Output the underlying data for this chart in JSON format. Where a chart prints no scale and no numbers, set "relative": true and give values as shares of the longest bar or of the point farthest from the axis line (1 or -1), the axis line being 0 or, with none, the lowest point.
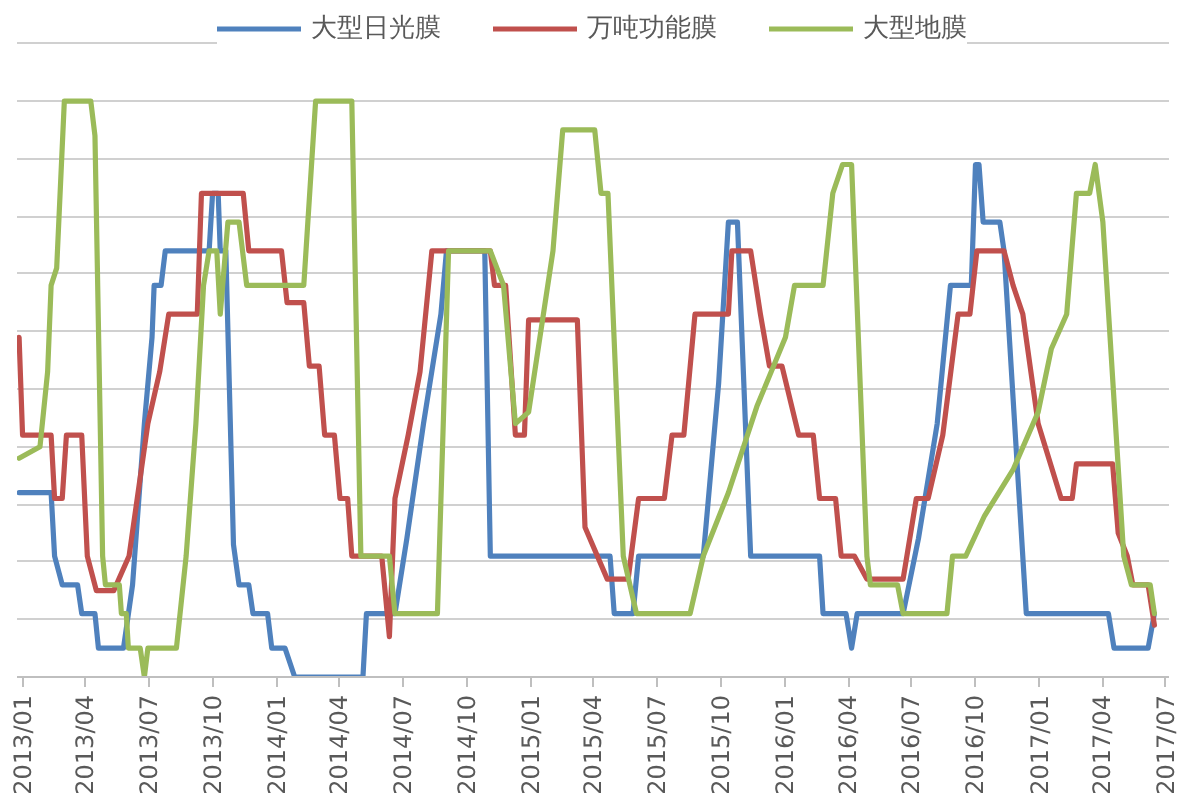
{
  "chart_data": {
    "type": "line",
    "relative": true,
    "legend": "top",
    "grid": "y",
    "xlim": [
      "2012-12-24",
      "2017-07-06"
    ],
    "xticks": [
      {
        "value": "2013-01",
        "label": "2013/01"
      },
      {
        "value": "2013-04",
        "label": "2013/04"
      },
      {
        "value": "2013-07",
        "label": "2013/07"
      },
      {
        "value": "2013-10",
        "label": "2013/10"
      },
      {
        "value": "2014-01",
        "label": "2014/01"
      },
      {
        "value": "2014-04",
        "label": "2014/04"
      },
      {
        "value": "2014-07",
        "label": "2014/07"
      },
      {
        "value": "2014-10",
        "label": "2014/10"
      },
      {
        "value": "2015-01",
        "label": "2015/01"
      },
      {
        "value": "2015-04",
        "label": "2015/04"
      },
      {
        "value": "2015-07",
        "label": "2015/07"
      },
      {
        "value": "2015-10",
        "label": "2015/10"
      },
      {
        "value": "2016-01",
        "label": "2016/01"
      },
      {
        "value": "2016-04",
        "label": "2016/04"
      },
      {
        "value": "2016-07",
        "label": "2016/07"
      },
      {
        "value": "2016-10",
        "label": "2016/10"
      },
      {
        "value": "2017-01",
        "label": "2017/01"
      },
      {
        "value": "2017-04",
        "label": "2017/04"
      },
      {
        "value": "2017-07",
        "label": "2017/07"
      }
    ],
    "series": [
      {
        "name": "大型日光膜",
        "color": "#4f81bd",
        "x": [
          "2012-12-27",
          "2013-02-11",
          "2013-02-16",
          "2013-02-27",
          "2013-03-21",
          "2013-03-27",
          "2013-04-15",
          "2013-04-20",
          "2013-05-26",
          "2013-06-08",
          "2013-06-25",
          "2013-07-06",
          "2013-07-09",
          "2013-07-19",
          "2013-07-25",
          "2013-09-26",
          "2013-10-01",
          "2013-10-09",
          "2013-10-12",
          "2013-10-20",
          "2013-10-31",
          "2013-11-08",
          "2013-11-22",
          "2013-11-28",
          "2013-12-19",
          "2013-12-25",
          "2014-01-13",
          "2014-01-27",
          "2014-05-05",
          "2014-05-10",
          "2014-06-20",
          "2014-07-07",
          "2014-07-31",
          "2014-08-25",
          "2014-09-02",
          "2014-10-27",
          "2014-11-04",
          "2015-04-25",
          "2015-05-01",
          "2015-05-28",
          "2015-06-05",
          "2015-09-06",
          "2015-09-28",
          "2015-10-12",
          "2015-10-25",
          "2015-11-13",
          "2016-02-20",
          "2016-02-25",
          "2016-03-29",
          "2016-04-06",
          "2016-04-14",
          "2016-06-19",
          "2016-07-11",
          "2016-08-07",
          "2016-08-26",
          "2016-09-25",
          "2016-10-01",
          "2016-10-06",
          "2016-10-12",
          "2016-11-05",
          "2016-11-11",
          "2016-12-13",
          "2017-04-10",
          "2017-04-18",
          "2017-06-06",
          "2017-06-15"
        ],
        "values": [
          0.32,
          0.32,
          0.21,
          0.16,
          0.16,
          0.11,
          0.11,
          0.05,
          0.05,
          0.16,
          0.44,
          0.59,
          0.68,
          0.68,
          0.74,
          0.74,
          0.84,
          0.84,
          0.74,
          0.74,
          0.23,
          0.16,
          0.16,
          0.11,
          0.11,
          0.05,
          0.05,
          0,
          0,
          0.11,
          0.11,
          0.24,
          0.44,
          0.63,
          0.74,
          0.74,
          0.21,
          0.21,
          0.11,
          0.11,
          0.21,
          0.21,
          0.51,
          0.79,
          0.79,
          0.21,
          0.21,
          0.11,
          0.11,
          0.05,
          0.11,
          0.11,
          0.24,
          0.44,
          0.68,
          0.68,
          0.89,
          0.89,
          0.79,
          0.79,
          0.74,
          0.11,
          0.11,
          0.05,
          0.05,
          0.11
        ]
      },
      {
        "name": "万吨功能膜",
        "color": "#c0504d",
        "x": [
          "2012-12-27",
          "2013-01-01",
          "2013-02-11",
          "2013-02-16",
          "2013-02-27",
          "2013-03-05",
          "2013-03-27",
          "2013-04-04",
          "2013-04-17",
          "2013-05-12",
          "2013-06-03",
          "2013-06-30",
          "2013-07-17",
          "2013-07-30",
          "2013-09-09",
          "2013-09-15",
          "2013-11-14",
          "2013-11-22",
          "2014-01-08",
          "2014-01-16",
          "2014-02-09",
          "2014-02-17",
          "2014-03-03",
          "2014-03-11",
          "2014-03-25",
          "2014-04-02",
          "2014-04-13",
          "2014-04-19",
          "2014-06-01",
          "2014-06-12",
          "2014-06-20",
          "2014-07-09",
          "2014-07-26",
          "2014-08-12",
          "2014-11-04",
          "2014-11-10",
          "2014-11-26",
          "2014-12-10",
          "2014-12-23",
          "2014-12-29",
          "2015-03-09",
          "2015-03-20",
          "2015-04-21",
          "2015-05-21",
          "2015-06-05",
          "2015-07-12",
          "2015-07-23",
          "2015-08-09",
          "2015-08-25",
          "2015-10-12",
          "2015-10-17",
          "2015-11-13",
          "2015-11-27",
          "2015-12-10",
          "2015-12-28",
          "2016-01-21",
          "2016-02-11",
          "2016-02-20",
          "2016-03-14",
          "2016-03-22",
          "2016-04-10",
          "2016-04-28",
          "2016-06-19",
          "2016-07-08",
          "2016-07-25",
          "2016-08-15",
          "2016-09-06",
          "2016-09-23",
          "2016-10-03",
          "2016-11-11",
          "2016-11-24",
          "2016-12-08",
          "2016-12-30",
          "2017-02-01",
          "2017-02-17",
          "2017-02-23",
          "2017-04-16",
          "2017-04-24",
          "2017-05-07",
          "2017-05-15",
          "2017-06-06",
          "2017-06-15"
        ],
        "values": [
          0.59,
          0.42,
          0.42,
          0.31,
          0.31,
          0.42,
          0.42,
          0.21,
          0.15,
          0.15,
          0.21,
          0.44,
          0.53,
          0.63,
          0.63,
          0.84,
          0.84,
          0.74,
          0.74,
          0.65,
          0.65,
          0.54,
          0.54,
          0.42,
          0.42,
          0.31,
          0.31,
          0.21,
          0.21,
          0.07,
          0.31,
          0.42,
          0.53,
          0.74,
          0.74,
          0.68,
          0.68,
          0.42,
          0.42,
          0.62,
          0.62,
          0.26,
          0.17,
          0.17,
          0.31,
          0.31,
          0.42,
          0.42,
          0.63,
          0.63,
          0.74,
          0.74,
          0.63,
          0.54,
          0.54,
          0.42,
          0.42,
          0.31,
          0.31,
          0.21,
          0.21,
          0.17,
          0.17,
          0.31,
          0.31,
          0.42,
          0.63,
          0.63,
          0.74,
          0.74,
          0.68,
          0.63,
          0.44,
          0.31,
          0.31,
          0.37,
          0.37,
          0.25,
          0.21,
          0.16,
          0.16,
          0.09
        ]
      },
      {
        "name": "大型地膜",
        "color": "#9bbb59",
        "x": [
          "2012-12-27",
          "2013-01-26",
          "2013-02-06",
          "2013-02-11",
          "2013-02-19",
          "2013-03-02",
          "2013-04-09",
          "2013-04-15",
          "2013-04-26",
          "2013-04-30",
          "2013-05-20",
          "2013-05-23",
          "2013-05-30",
          "2013-06-02",
          "2013-06-19",
          "2013-06-25",
          "2013-06-30",
          "2013-08-10",
          "2013-08-24",
          "2013-09-07",
          "2013-09-18",
          "2013-09-26",
          "2013-10-07",
          "2013-10-12",
          "2013-10-23",
          "2013-11-08",
          "2013-11-19",
          "2014-02-09",
          "2014-02-26",
          "2014-04-19",
          "2014-05-02",
          "2014-06-12",
          "2014-06-20",
          "2014-08-20",
          "2014-09-05",
          "2014-11-04",
          "2014-11-23",
          "2014-12-10",
          "2014-12-29",
          "2015-02-02",
          "2015-02-16",
          "2015-04-03",
          "2015-04-12",
          "2015-04-22",
          "2015-05-14",
          "2015-06-02",
          "2015-08-18",
          "2015-09-06",
          "2015-10-12",
          "2015-11-22",
          "2016-01-02",
          "2016-01-15",
          "2016-02-25",
          "2016-03-10",
          "2016-03-24",
          "2016-04-06",
          "2016-04-28",
          "2016-05-03",
          "2016-06-11",
          "2016-06-19",
          "2016-08-21",
          "2016-08-29",
          "2016-09-17",
          "2016-10-14",
          "2016-11-24",
          "2016-12-30",
          "2017-01-18",
          "2017-02-09",
          "2017-02-23",
          "2017-03-14",
          "2017-03-22",
          "2017-04-02",
          "2017-05-02",
          "2017-05-13",
          "2017-06-09",
          "2017-06-15"
        ],
        "values": [
          0.38,
          0.4,
          0.53,
          0.68,
          0.71,
          1.0,
          1.0,
          0.94,
          0.21,
          0.16,
          0.16,
          0.11,
          0.11,
          0.05,
          0.05,
          0,
          0.05,
          0.05,
          0.21,
          0.44,
          0.68,
          0.74,
          0.74,
          0.63,
          0.79,
          0.79,
          0.68,
          0.68,
          1.0,
          1.0,
          0.21,
          0.21,
          0.11,
          0.11,
          0.74,
          0.74,
          0.68,
          0.44,
          0.46,
          0.74,
          0.95,
          0.95,
          0.84,
          0.84,
          0.21,
          0.11,
          0.11,
          0.21,
          0.32,
          0.47,
          0.59,
          0.68,
          0.68,
          0.84,
          0.89,
          0.89,
          0.21,
          0.16,
          0.16,
          0.11,
          0.11,
          0.21,
          0.21,
          0.28,
          0.36,
          0.46,
          0.57,
          0.63,
          0.84,
          0.84,
          0.89,
          0.79,
          0.21,
          0.16,
          0.16,
          0.11
        ]
      }
    ]
  }
}
